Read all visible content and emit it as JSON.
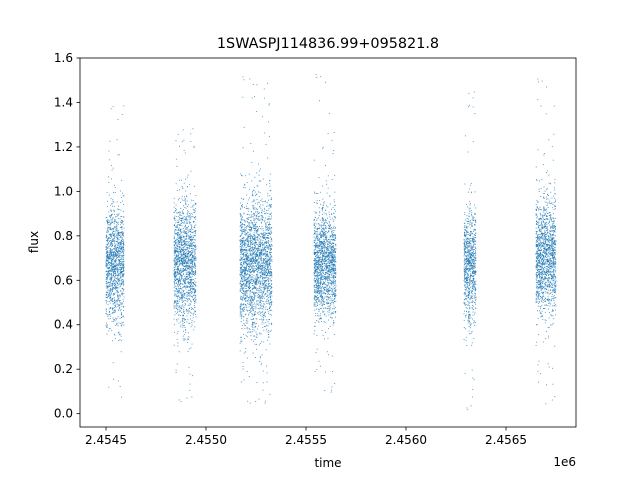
{
  "chart_data": {
    "type": "scatter",
    "title": "1SWASPJ114836.99+095821.8",
    "xlabel": "time",
    "ylabel": "flux",
    "x_offset_label": "1e6",
    "x_ticks": [
      "2.4545",
      "2.4550",
      "2.4555",
      "2.4560",
      "2.4565"
    ],
    "x_tick_values": [
      2454500,
      2455000,
      2455500,
      2456000,
      2456500
    ],
    "y_ticks": [
      "0.0",
      "0.2",
      "0.4",
      "0.6",
      "0.8",
      "1.0",
      "1.2",
      "1.4",
      "1.6"
    ],
    "y_tick_values": [
      0.0,
      0.2,
      0.4,
      0.6,
      0.8,
      1.0,
      1.2,
      1.4,
      1.6
    ],
    "xlim": [
      2454370,
      2456850
    ],
    "ylim": [
      -0.06,
      1.6
    ],
    "grid": false,
    "marker_color": "#1f77b4",
    "series": [
      {
        "clusters": [
          {
            "x_start": 2454500,
            "x_end": 2454590,
            "y_center": 0.67,
            "y_spread": 0.13,
            "y_min": 0.07,
            "y_max": 1.44
          },
          {
            "x_start": 2454840,
            "x_end": 2454950,
            "y_center": 0.67,
            "y_spread": 0.14,
            "y_min": 0.04,
            "y_max": 1.31
          },
          {
            "x_start": 2455170,
            "x_end": 2455330,
            "y_center": 0.67,
            "y_spread": 0.15,
            "y_min": 0.03,
            "y_max": 1.52
          },
          {
            "x_start": 2455540,
            "x_end": 2455650,
            "y_center": 0.67,
            "y_spread": 0.12,
            "y_min": 0.08,
            "y_max": 1.53
          },
          {
            "x_start": 2456290,
            "x_end": 2456350,
            "y_center": 0.67,
            "y_spread": 0.13,
            "y_min": 0.0,
            "y_max": 1.48
          },
          {
            "x_start": 2456650,
            "x_end": 2456750,
            "y_center": 0.7,
            "y_spread": 0.13,
            "y_min": 0.02,
            "y_max": 1.51
          }
        ]
      }
    ]
  }
}
